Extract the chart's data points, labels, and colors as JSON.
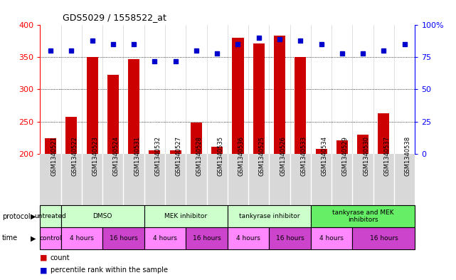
{
  "title": "GDS5029 / 1558522_at",
  "samples": [
    "GSM1340521",
    "GSM1340522",
    "GSM1340523",
    "GSM1340524",
    "GSM1340531",
    "GSM1340532",
    "GSM1340527",
    "GSM1340528",
    "GSM1340535",
    "GSM1340536",
    "GSM1340525",
    "GSM1340526",
    "GSM1340533",
    "GSM1340534",
    "GSM1340529",
    "GSM1340530",
    "GSM1340537",
    "GSM1340538"
  ],
  "counts": [
    224,
    257,
    350,
    323,
    347,
    205,
    205,
    248,
    211,
    380,
    371,
    383,
    350,
    208,
    221,
    230,
    263,
    200
  ],
  "percentile_ranks": [
    80,
    80,
    88,
    85,
    85,
    72,
    72,
    80,
    78,
    85,
    90,
    89,
    88,
    85,
    78,
    78,
    80,
    85
  ],
  "ylim_left": [
    200,
    400
  ],
  "ylim_right": [
    0,
    100
  ],
  "yticks_left": [
    200,
    250,
    300,
    350,
    400
  ],
  "yticks_right": [
    0,
    25,
    50,
    75,
    100
  ],
  "bar_color": "#cc0000",
  "dot_color": "#0000cc",
  "protocol_groups": [
    {
      "label": "untreated",
      "start": 0,
      "end": 1,
      "color": "#ccffcc"
    },
    {
      "label": "DMSO",
      "start": 1,
      "end": 5,
      "color": "#ccffcc"
    },
    {
      "label": "MEK inhibitor",
      "start": 5,
      "end": 9,
      "color": "#ccffcc"
    },
    {
      "label": "tankyrase inhibitor",
      "start": 9,
      "end": 13,
      "color": "#ccffcc"
    },
    {
      "label": "tankyrase and MEK\ninhibitors",
      "start": 13,
      "end": 18,
      "color": "#66ee66"
    }
  ],
  "time_groups": [
    {
      "label": "control",
      "start": 0,
      "end": 1,
      "color": "#ff88ff"
    },
    {
      "label": "4 hours",
      "start": 1,
      "end": 3,
      "color": "#ff88ff"
    },
    {
      "label": "16 hours",
      "start": 3,
      "end": 5,
      "color": "#cc44cc"
    },
    {
      "label": "4 hours",
      "start": 5,
      "end": 7,
      "color": "#ff88ff"
    },
    {
      "label": "16 hours",
      "start": 7,
      "end": 9,
      "color": "#cc44cc"
    },
    {
      "label": "4 hours",
      "start": 9,
      "end": 11,
      "color": "#ff88ff"
    },
    {
      "label": "16 hours",
      "start": 11,
      "end": 13,
      "color": "#cc44cc"
    },
    {
      "label": "4 hours",
      "start": 13,
      "end": 15,
      "color": "#ff88ff"
    },
    {
      "label": "16 hours",
      "start": 15,
      "end": 18,
      "color": "#cc44cc"
    }
  ]
}
